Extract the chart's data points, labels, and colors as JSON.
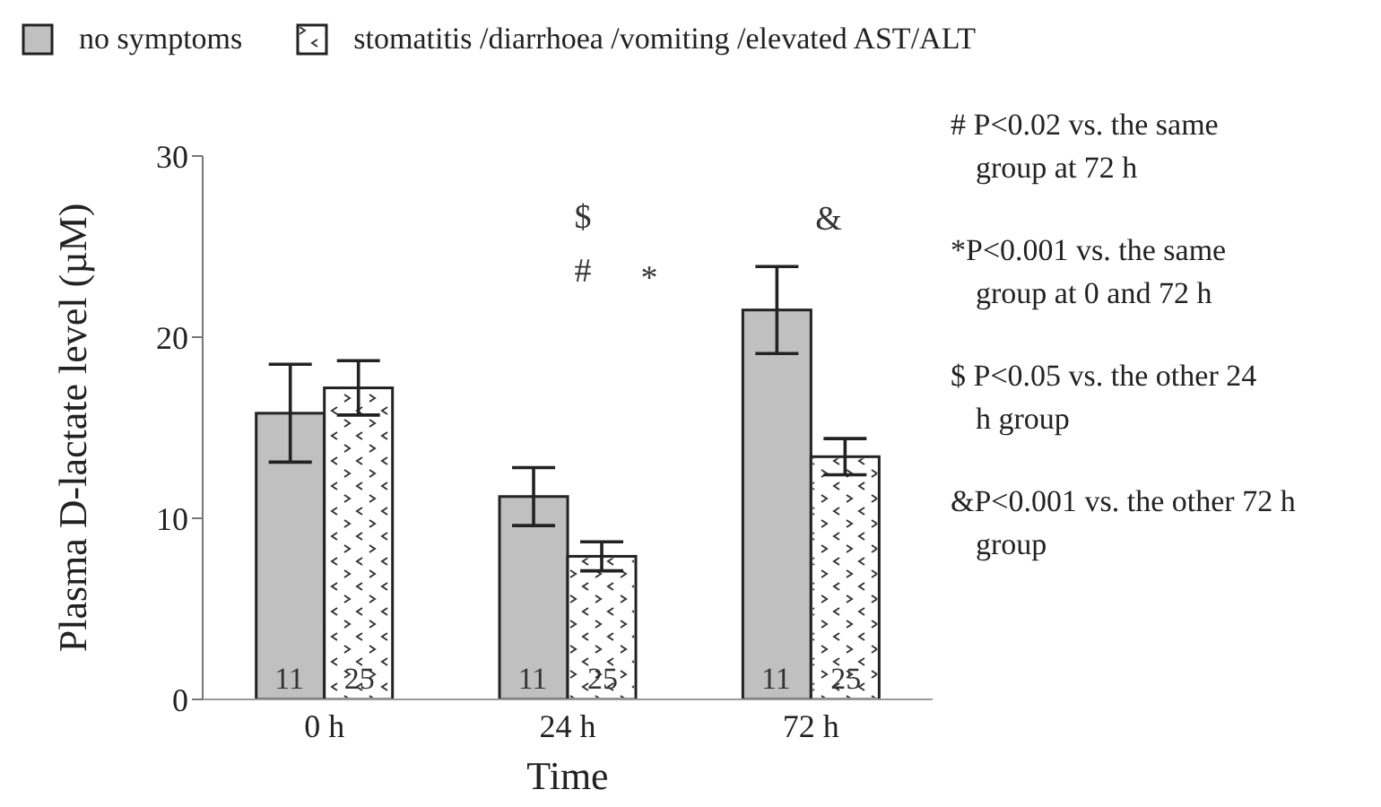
{
  "chart_data": {
    "type": "bar",
    "xlabel": "Time",
    "ylabel": "Plasma D-lactate level (µM)",
    "categories": [
      "0 h",
      "24 h",
      "72 h"
    ],
    "series": [
      {
        "name": "no symptoms",
        "color": "#c0c0c0",
        "values": [
          15.8,
          11.2,
          21.5
        ],
        "errors": [
          2.7,
          1.6,
          2.4
        ]
      },
      {
        "name": "stomatitis /diarrhoea /vomiting /elevated AST/ALT",
        "color": "#ffffff",
        "values": [
          17.2,
          7.9,
          13.4
        ],
        "errors": [
          1.5,
          0.8,
          1.0
        ]
      }
    ],
    "ylim": [
      0,
      30
    ],
    "yticks": [
      0,
      10,
      20,
      30
    ],
    "legend": "top left",
    "grid": false,
    "annotations": [
      "$",
      "#",
      "*",
      "&",
      {
        "text": "11",
        "x": "0 h",
        "y": 1
      },
      {
        "text": "25",
        "x": "0 h",
        "y": 1
      },
      {
        "text": "11",
        "x": "24 h",
        "y": 1
      },
      {
        "text": "25",
        "x": "24 h",
        "y": 1
      },
      {
        "text": "11",
        "x": "72 h",
        "y": 1
      },
      {
        "text": "25",
        "x": "72 h",
        "y": 1
      },
      "# P<0.02 vs. the same group at 72 h",
      "*P<0.001 vs. the same group at 0 and 72 h",
      "$ P<0.05 vs. the other 24 h group",
      "&P<0.001 vs. the other 72 h group"
    ]
  }
}
